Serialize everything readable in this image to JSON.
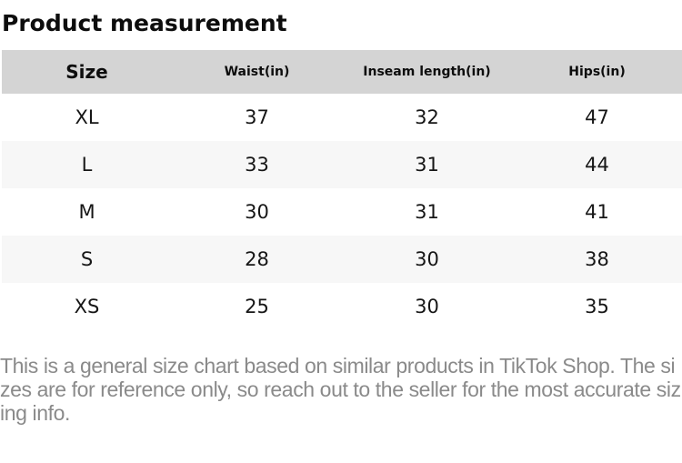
{
  "title": "Product measurement",
  "table": {
    "headers": [
      "Size",
      "Waist(in)",
      "Inseam length(in)",
      "Hips(in)"
    ],
    "rows": [
      [
        "XL",
        "37",
        "32",
        "47"
      ],
      [
        "L",
        "33",
        "31",
        "44"
      ],
      [
        "M",
        "30",
        "31",
        "41"
      ],
      [
        "S",
        "28",
        "30",
        "38"
      ],
      [
        "XS",
        "25",
        "30",
        "35"
      ]
    ]
  },
  "disclaimer": "This is a general size chart based on similar products in TikTok Shop. The sizes are for reference only, so reach out to the seller for the most accurate sizing info.",
  "colors": {
    "header_bg": "#d4d4d4",
    "row_alt_bg": "#f7f7f7",
    "cell_text": "#161616",
    "title_text": "#0d0d0d",
    "disclaimer_text": "#8a8a8a"
  }
}
